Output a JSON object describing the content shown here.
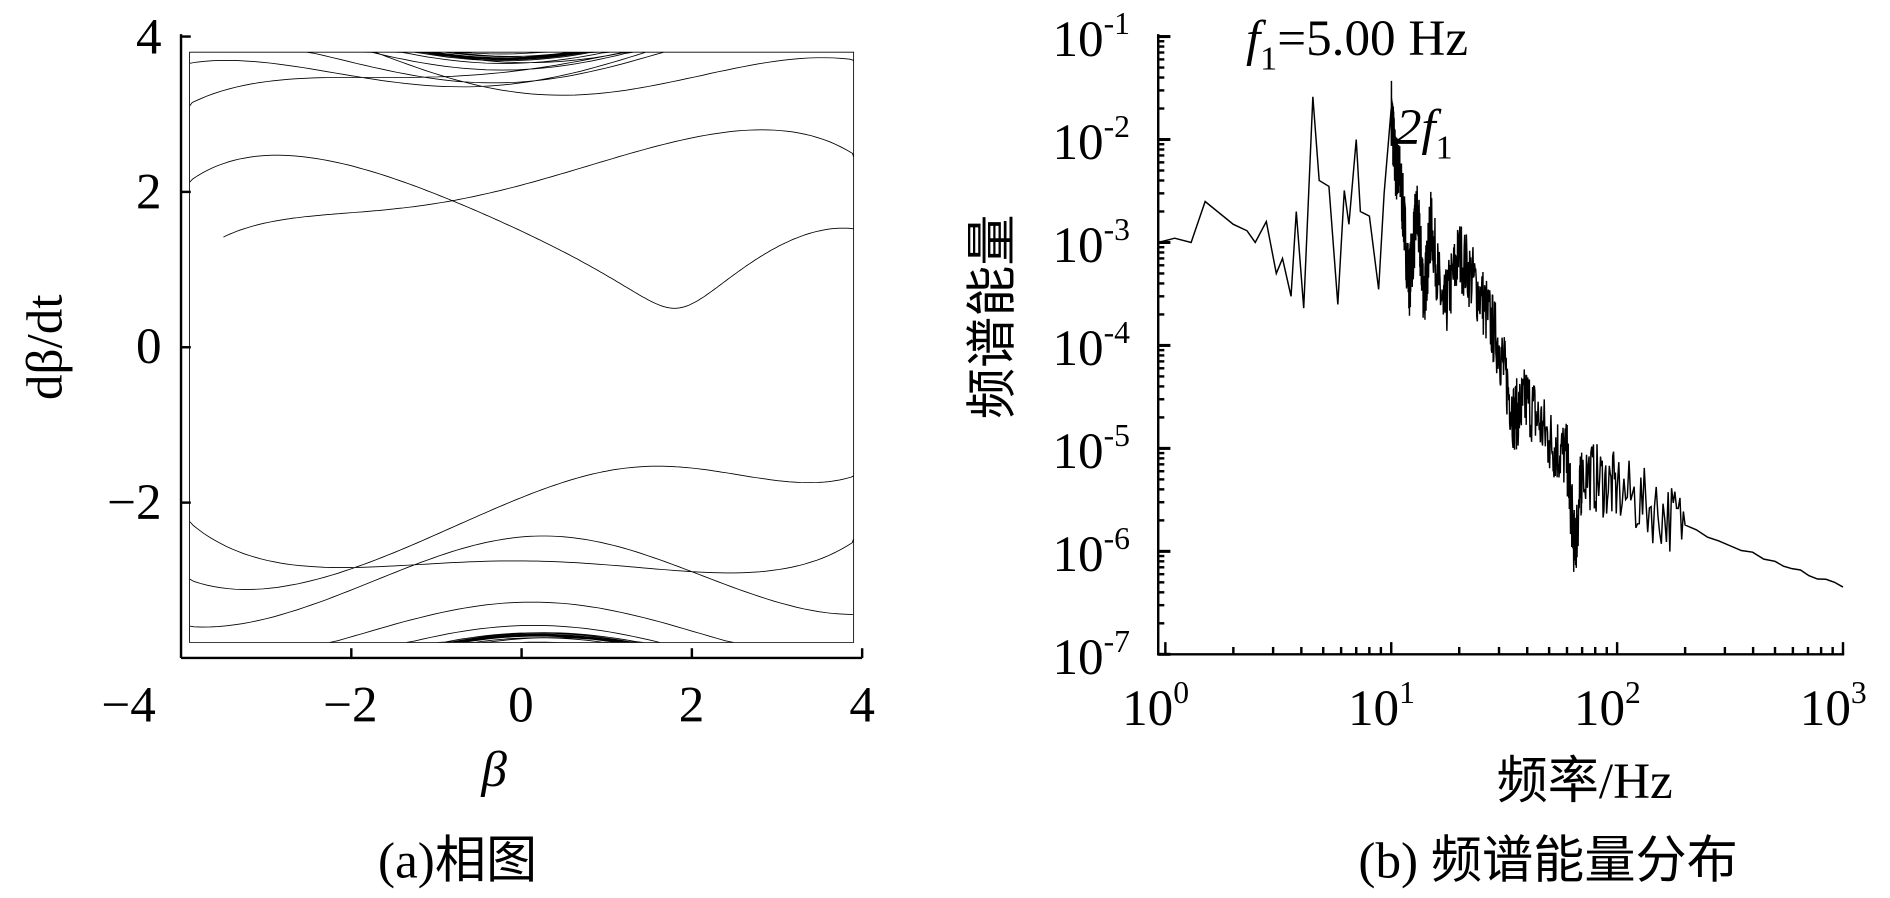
{
  "chart_data": [
    {
      "type": "line",
      "panel_caption": "(a)相图",
      "xlabel": "β",
      "ylabel": "dβ/dt",
      "xlim": [
        -4,
        4
      ],
      "ylim": [
        -4,
        4
      ],
      "xticks": [
        "−4",
        "−2",
        "0",
        "2",
        "4"
      ],
      "yticks": [
        "4",
        "2",
        "0",
        "−2"
      ],
      "grid": false,
      "series_description_values": {
        "beta_range": [
          -3.7,
          3.7
        ],
        "dbeta_dt_range": [
          -3.6,
          3.6
        ]
      }
    },
    {
      "type": "line",
      "panel_caption": "(b) 频谱能量分布",
      "xlabel": "频率/Hz",
      "ylabel": "频谱能量",
      "xscale": "log",
      "yscale": "log",
      "xlim": [
        0.93,
        1000
      ],
      "ylim": [
        1e-07,
        0.1
      ],
      "xticks": [
        {
          "base": "10",
          "exp": "0"
        },
        {
          "base": "10",
          "exp": "1"
        },
        {
          "base": "10",
          "exp": "2"
        },
        {
          "base": "10",
          "exp": "3"
        }
      ],
      "yticks": [
        {
          "base": "10",
          "exp": "-1"
        },
        {
          "base": "10",
          "exp": "-2"
        },
        {
          "base": "10",
          "exp": "-3"
        },
        {
          "base": "10",
          "exp": "-4"
        },
        {
          "base": "10",
          "exp": "-5"
        },
        {
          "base": "10",
          "exp": "-6"
        },
        {
          "base": "10",
          "exp": "-7"
        }
      ],
      "grid": false,
      "annotations": [
        {
          "text_f": "f",
          "text_sub": "1",
          "text_rest": "=5.00 Hz"
        },
        {
          "text_f": "2f",
          "text_sub": "1"
        }
      ],
      "x": [
        0.93,
        1.1,
        1.3,
        1.5,
        2,
        2.3,
        2.5,
        2.8,
        3.1,
        3.3,
        3.6,
        3.8,
        4.1,
        4.5,
        4.8,
        5.3,
        5.8,
        6.2,
        6.5,
        7,
        7.3,
        8,
        8.8,
        9.3,
        10,
        10.4,
        11,
        12,
        13,
        14,
        15,
        17,
        20,
        25,
        30,
        35,
        40,
        50,
        60,
        65,
        70,
        100,
        200,
        500,
        1000
      ],
      "y": [
        0.001,
        0.0011,
        0.001,
        0.0025,
        0.0015,
        0.0013,
        0.001,
        0.0016,
        0.0005,
        0.0007,
        0.0003,
        0.002,
        0.00023,
        0.026,
        0.004,
        0.0035,
        0.00025,
        0.0032,
        0.0015,
        0.01,
        0.002,
        0.0018,
        0.00035,
        0.003,
        0.02,
        0.006,
        0.004,
        0.0004,
        0.002,
        0.0003,
        0.0015,
        0.0002,
        0.0008,
        0.0003,
        0.0001,
        2e-05,
        3e-05,
        1.2e-05,
        8e-06,
        1e-06,
        6e-06,
        4e-06,
        1.8e-06,
        8e-07,
        4.5e-07
      ]
    }
  ]
}
